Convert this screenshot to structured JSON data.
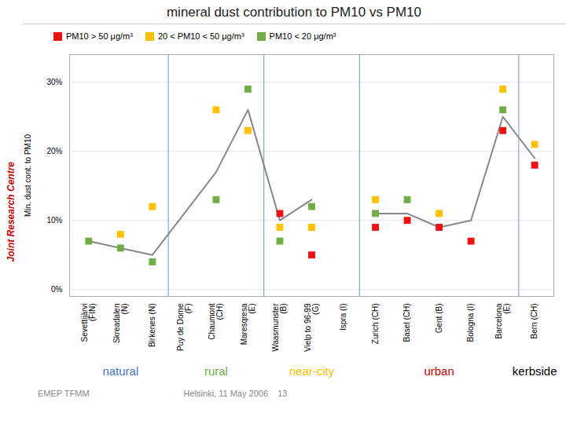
{
  "chart_data": {
    "type": "line",
    "title": "mineral dust contribution to PM10 vs PM10",
    "ylabel": "Min. dust cont. to PM10",
    "categories": [
      "Sevettijärvi\n(FIN)",
      "Skreadalen\n(N)",
      "Birkenes (N)",
      "Puy de Dome\n(F)",
      "Chaumont\n(CH)",
      "Maresqresa\n(E)",
      "Waasmunster\n(B)",
      "Vielp to 96-99\n(G)",
      "Ispra (I)",
      "Zurich (CH)",
      "Basel (CH)",
      "Gent (B)",
      "Bologna (I)",
      "Barcelona\n(E)",
      "Bern (CH)"
    ],
    "series": [
      {
        "type": "line",
        "color": "#888888",
        "values": [
          7,
          6,
          5,
          11,
          17,
          26,
          10,
          13,
          null,
          11,
          11,
          9,
          10,
          25,
          19
        ]
      },
      {
        "name": "PM10 > 50 μg/m³",
        "type": "scatter",
        "marker": "square",
        "color": "#EE1111",
        "values": [
          null,
          null,
          null,
          null,
          null,
          null,
          11,
          5,
          null,
          9,
          10,
          9,
          7,
          23,
          18
        ]
      },
      {
        "name": "20 < PM10 < 50 μg/m³",
        "type": "scatter",
        "marker": "square",
        "color": "#FFC000",
        "values": [
          null,
          8,
          12,
          null,
          26,
          23,
          9,
          9,
          null,
          13,
          null,
          11,
          null,
          29,
          21
        ]
      },
      {
        "name": "PM10 < 20 μg/m³",
        "type": "scatter",
        "marker": "square",
        "color": "#70AD47",
        "values": [
          7,
          6,
          4,
          null,
          13,
          29,
          7,
          12,
          null,
          11,
          13,
          null,
          null,
          26,
          null
        ]
      }
    ],
    "sections": [
      {
        "text": "natural",
        "color": "#4472C4",
        "from": "Sevettijärvi\n(FIN)",
        "to": "Birkenes (N)"
      },
      {
        "text": "rural",
        "color": "#70AD47",
        "from": "Puy de Dome\n(F)",
        "to": "Maresqresa\n(E)"
      },
      {
        "text": "near-city",
        "color": "#FFC000",
        "from": "Waasmunster\n(B)",
        "to": "Ispra (I)"
      },
      {
        "text": "urban",
        "color": "#CC0000",
        "from": "Zurich (CH)",
        "to": "Barcelona\n(E)"
      },
      {
        "text": "kerbside",
        "color": "#000000",
        "from": "Bern (CH)",
        "to": "Bern (CH)"
      }
    ],
    "footer": [
      "EMEP TFMM",
      "Helsinki, 11 May 2006    13"
    ],
    "side_text": "Joint Research Centre",
    "ylim": [
      -1,
      34
    ],
    "yticks": [
      {
        "value": 0,
        "label": "0%"
      },
      {
        "value": 10,
        "label": "10%"
      },
      {
        "value": 20,
        "label": "20%"
      },
      {
        "value": 30,
        "label": "30%"
      }
    ],
    "grid": true,
    "legend": "top"
  }
}
